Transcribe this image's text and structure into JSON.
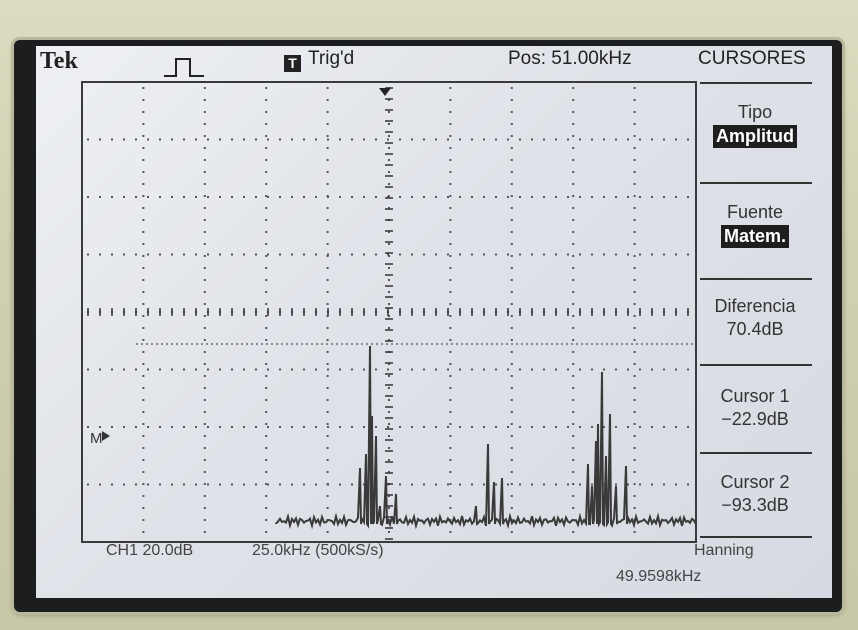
{
  "header": {
    "brand": "Tek",
    "trigger_mark": "T",
    "trigger_status": "Trig'd",
    "position": "Pos: 51.00kHz",
    "menu_title": "CURSORES"
  },
  "menu": {
    "tipo": {
      "label": "Tipo",
      "value": "Amplitud"
    },
    "fuente": {
      "label": "Fuente",
      "value": "Matem."
    },
    "diferencia": {
      "label": "Diferencia",
      "value": "70.4dB"
    },
    "cursor1": {
      "label": "Cursor 1",
      "value": "−22.9dB"
    },
    "cursor2": {
      "label": "Cursor 2",
      "value": "−93.3dB"
    }
  },
  "status": {
    "channel_scale": "CH1 20.0dB",
    "freq_scale": "25.0kHz (500kS/s)",
    "window": "Hanning",
    "frequency_readout": "49.9598kHz"
  },
  "marker": {
    "label": "M"
  },
  "colors": {
    "lcd_bg": "#e3e6ec",
    "trace": "#3a3a3a",
    "bezel": "#1c1d1f",
    "inverse_bg": "#1e1e1e"
  }
}
